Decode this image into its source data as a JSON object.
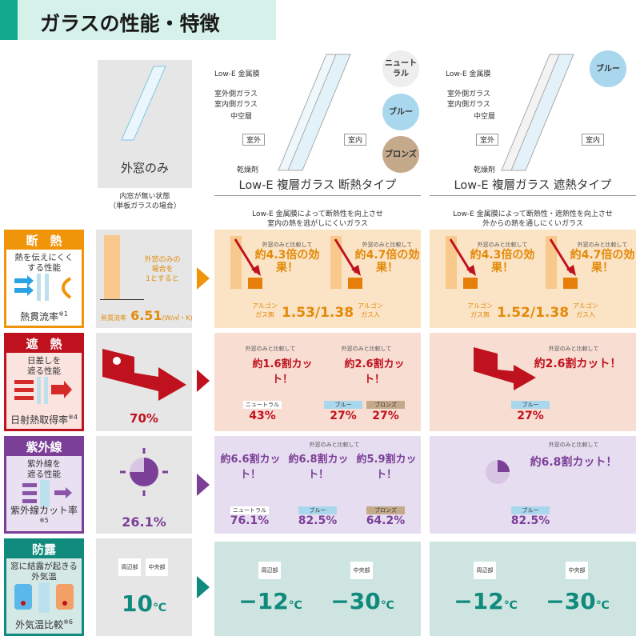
{
  "header": {
    "title": "ガラスの性能・特徴"
  },
  "colors": {
    "orange": "#f0940a",
    "red": "#c0121e",
    "purple": "#7b3f98",
    "teal": "#0f8a7c"
  },
  "columns": {
    "single": {
      "title": "外窓のみ",
      "note": "内窓が無い状態\n（単板ガラスの場合）"
    },
    "insulation": {
      "title": "Low-E 複層ガラス 断熱タイプ",
      "desc": "Low-E 金属膜によって断熱性を向上させ\n室内の熱を逃がしにくいガラス",
      "colors": [
        "ニュートラル",
        "ブルー",
        "ブロンズ"
      ]
    },
    "shading": {
      "title": "Low-E 複層ガラス 遮熱タイプ",
      "desc": "Low-E 金属膜によって断熱性・遮熱性を向上させ\n外からの熱を通しにくいガラス",
      "colors": [
        "ブルー"
      ]
    },
    "labels": [
      "Low-E 金属膜",
      "室外側ガラス",
      "室内側ガラス",
      "中空層",
      "乾燥剤"
    ],
    "outside": "室外",
    "inside": "室内"
  },
  "rows": {
    "heat": {
      "title": "断　熱",
      "desc": "熱を伝えにくく\nする性能",
      "metric": "熱貫流率",
      "note": "※1",
      "single_note": "外窓のみの\n場合を\n1とすると",
      "single_label": "熱貫流率",
      "single_value": "6.51",
      "single_unit": "(W/㎡・K)",
      "compare": "外窓のみと比較して",
      "ins": [
        "約4.3倍の効果！",
        "約4.7倍の効果！"
      ],
      "ins_value": "1.53/1.38",
      "shd": [
        "約4.3倍の効果！",
        "約4.7倍の効果！"
      ],
      "shd_value": "1.52/1.38",
      "gas_left": "アルゴン\nガス無",
      "gas_right": "アルゴン\nガス入",
      "value_label": "熱貫流率",
      "unit": "(W/㎡・K)"
    },
    "solar": {
      "title": "遮　熱",
      "desc": "日差しを\n遮る性能",
      "metric": "日射熱取得率",
      "note": "※4",
      "single_value": "70%",
      "compare": "外窓のみと比較して",
      "ins": [
        "約1.6割カット！",
        "約2.6割カット！"
      ],
      "ins_values": [
        {
          "tag": "ニュートラル",
          "v": "43%"
        },
        {
          "tag": "ブルー",
          "v": "27%"
        },
        {
          "tag": "ブロンズ",
          "v": "27%"
        }
      ],
      "shd": "約2.6割カット！",
      "shd_values": [
        {
          "tag": "ブルー",
          "v": "27%"
        }
      ]
    },
    "uv": {
      "title": "紫外線",
      "desc": "紫外線を\n遮る性能",
      "metric": "紫外線カット率",
      "note": "※5",
      "single_value": "26.1%",
      "compare": "外窓のみと比較して",
      "ins": [
        "約6.6割カット！",
        "約6.8割カット！",
        "約5.9割カット！"
      ],
      "ins_values": [
        {
          "tag": "ニュートラル",
          "v": "76.1%"
        },
        {
          "tag": "ブルー",
          "v": "82.5%"
        },
        {
          "tag": "ブロンズ",
          "v": "64.2%"
        }
      ],
      "shd": "約6.8割カット！",
      "shd_values": [
        {
          "tag": "ブルー",
          "v": "82.5%"
        }
      ]
    },
    "dew": {
      "title": "防露",
      "desc": "窓に結露が起きる\n外気温",
      "metric": "外気温比較",
      "note": "※6",
      "edge": "周辺部",
      "center": "中央部",
      "single_value": "10",
      "unit": "℃",
      "ins_values": [
        "−12",
        "−30"
      ],
      "shd_values": [
        "−12",
        "−30"
      ]
    }
  }
}
